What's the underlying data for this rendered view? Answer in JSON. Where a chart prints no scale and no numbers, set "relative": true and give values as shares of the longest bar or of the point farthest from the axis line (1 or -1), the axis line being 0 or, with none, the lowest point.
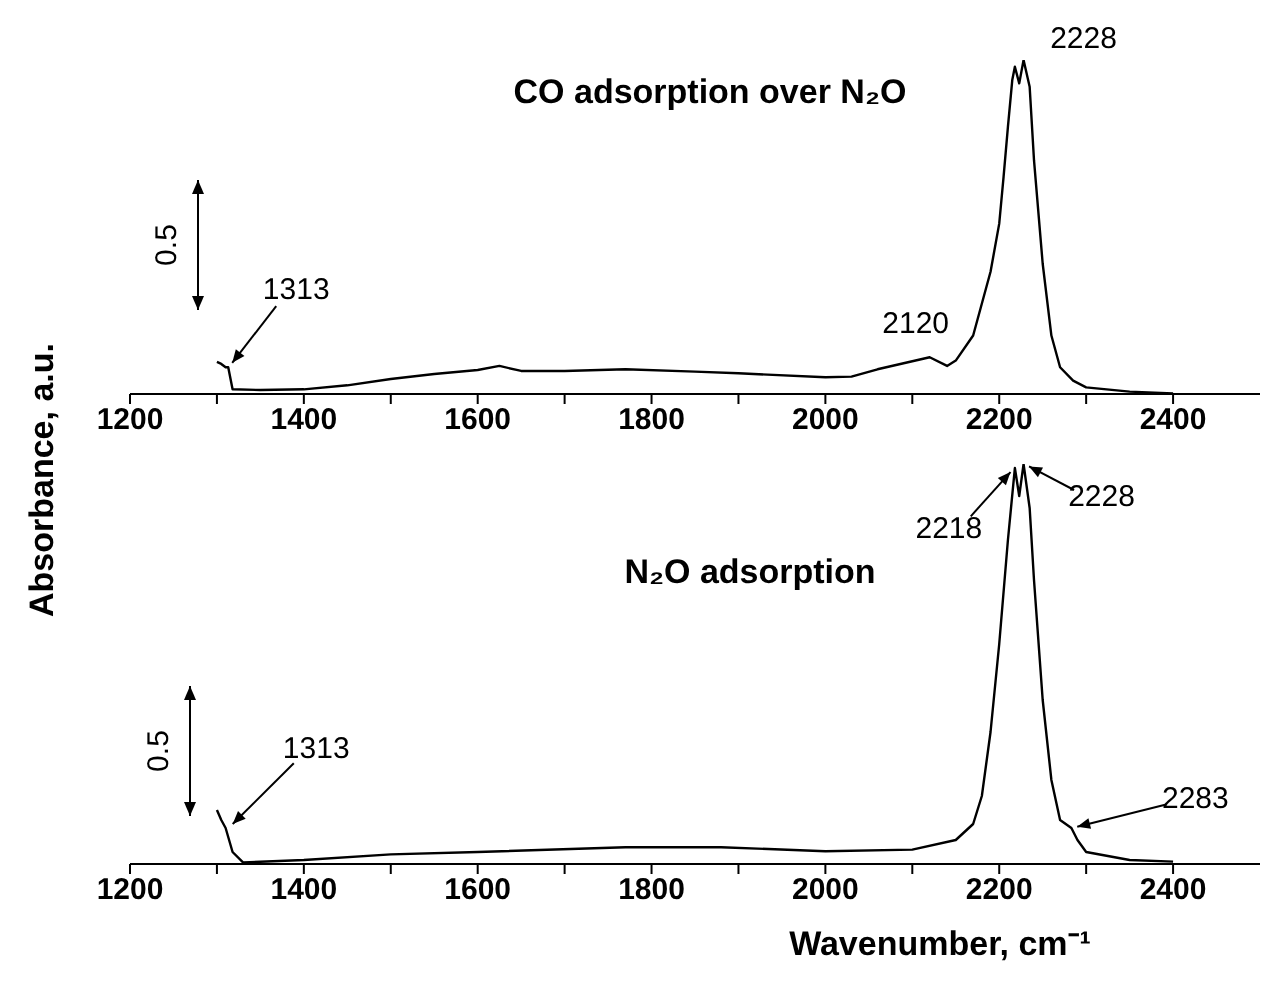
{
  "chart_data": [
    {
      "type": "line",
      "title": "CO adsorption over N₂O",
      "ylabel": "Absorbance, a.u.",
      "relative": true,
      "marker": "none",
      "color": "#000000",
      "x": [
        1300,
        1305,
        1310,
        1313,
        1318,
        1350,
        1400,
        1450,
        1500,
        1550,
        1600,
        1625,
        1650,
        1700,
        1770,
        1850,
        1900,
        2000,
        2030,
        2060,
        2100,
        2120,
        2140,
        2150,
        2170,
        2190,
        2200,
        2205,
        2210,
        2215,
        2218,
        2223,
        2228,
        2235,
        2240,
        2250,
        2260,
        2270,
        2285,
        2300,
        2350,
        2400
      ],
      "values": [
        0.096,
        0.09,
        0.08,
        0.08,
        0.014,
        0.012,
        0.014,
        0.026,
        0.045,
        0.06,
        0.072,
        0.084,
        0.069,
        0.069,
        0.074,
        0.067,
        0.062,
        0.05,
        0.052,
        0.074,
        0.098,
        0.11,
        0.084,
        0.1,
        0.175,
        0.366,
        0.51,
        0.65,
        0.8,
        0.94,
        0.98,
        0.93,
        1,
        0.92,
        0.7,
        0.39,
        0.175,
        0.08,
        0.04,
        0.02,
        0.007,
        0.002
      ],
      "xlim": [
        1200,
        2500
      ],
      "xticks": [
        1200,
        {
          "value": 1300,
          "label": null
        },
        1400,
        {
          "value": 1500,
          "label": null
        },
        1600,
        {
          "value": 1700,
          "label": null
        },
        1800,
        {
          "value": 1900,
          "label": null
        },
        2000,
        {
          "value": 2100,
          "label": null
        },
        2200,
        {
          "value": 2300,
          "label": null
        },
        2400
      ],
      "annotations": [
        "0.5",
        {
          "text": "1313",
          "x": 1313,
          "y": 0.08
        },
        {
          "text": "2120",
          "x": 2120,
          "y": 0.11
        },
        {
          "text": "2228",
          "x": 2228,
          "y": 1
        }
      ]
    },
    {
      "type": "line",
      "title": "N₂O adsorption",
      "xlabel": "Wavenumber, cm⁻¹",
      "relative": true,
      "marker": "none",
      "color": "#000000",
      "x": [
        1300,
        1305,
        1310,
        1318,
        1330,
        1400,
        1500,
        1600,
        1770,
        1880,
        2000,
        2100,
        2150,
        2170,
        2180,
        2190,
        2200,
        2210,
        2218,
        2223,
        2228,
        2235,
        2240,
        2250,
        2260,
        2270,
        2283,
        2290,
        2300,
        2350,
        2400
      ],
      "values": [
        0.135,
        0.11,
        0.09,
        0.03,
        0.004,
        0.01,
        0.024,
        0.03,
        0.042,
        0.042,
        0.032,
        0.036,
        0.06,
        0.1,
        0.17,
        0.33,
        0.55,
        0.81,
        0.99,
        0.92,
        1,
        0.89,
        0.71,
        0.41,
        0.21,
        0.11,
        0.09,
        0.06,
        0.03,
        0.01,
        0.006
      ],
      "xlim": [
        1200,
        2500
      ],
      "xticks": [
        1200,
        {
          "value": 1300,
          "label": null
        },
        1400,
        {
          "value": 1500,
          "label": null
        },
        1600,
        {
          "value": 1700,
          "label": null
        },
        1800,
        {
          "value": 1900,
          "label": null
        },
        2000,
        {
          "value": 2100,
          "label": null
        },
        2200,
        {
          "value": 2300,
          "label": null
        },
        2400
      ],
      "annotations": [
        "0.5",
        {
          "text": "1313",
          "x": 1313,
          "y": 0.09
        },
        {
          "text": "2218",
          "x": 2218,
          "y": 0.99
        },
        {
          "text": "2228",
          "x": 2228,
          "y": 1
        },
        {
          "text": "2283",
          "x": 2283,
          "y": 0.09
        }
      ]
    }
  ]
}
